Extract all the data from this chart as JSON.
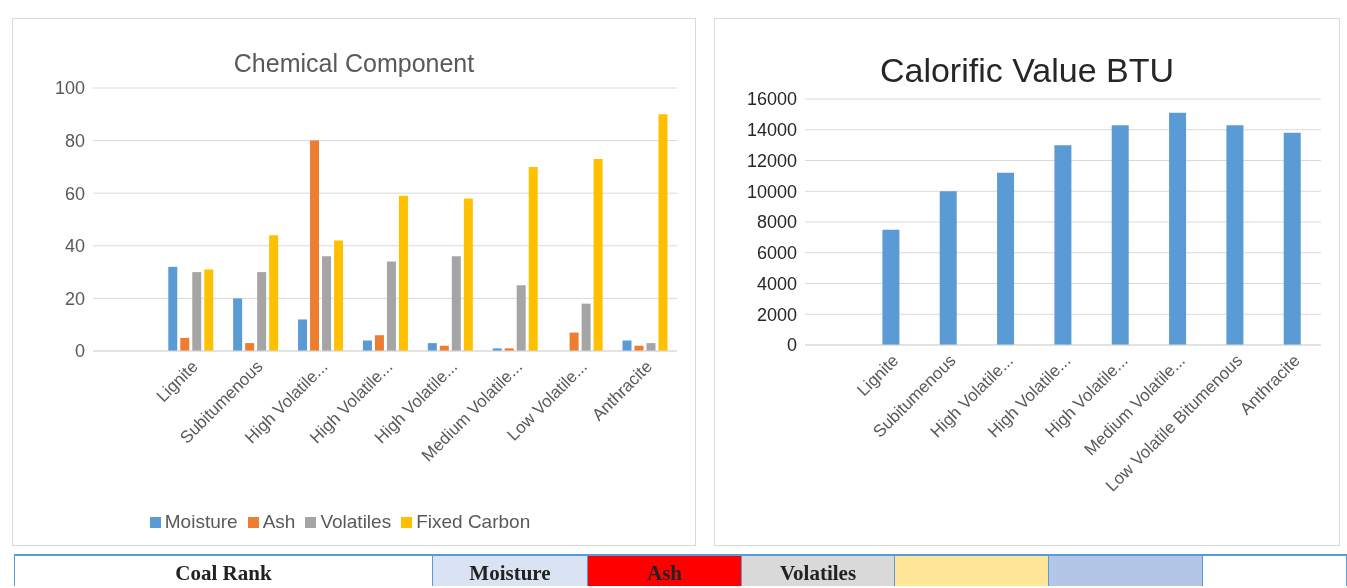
{
  "chart_data": [
    {
      "type": "bar",
      "title": "Chemical Component",
      "categories": [
        null,
        "Lignite",
        "Subitumenous",
        "High Volatile...",
        "High Volatile...",
        "High Volatile...",
        "Medium Volatile...",
        "Low Volatile...",
        "Anthracite"
      ],
      "series": [
        {
          "name": "Moisture",
          "color": "#5b9bd5",
          "values": [
            null,
            32,
            20,
            12,
            4,
            3,
            1,
            null,
            4
          ]
        },
        {
          "name": "Ash",
          "color": "#ed7d31",
          "values": [
            null,
            5,
            3,
            80,
            6,
            2,
            1,
            7,
            2
          ]
        },
        {
          "name": "Volatiles",
          "color": "#a5a5a5",
          "values": [
            null,
            30,
            30,
            36,
            34,
            36,
            25,
            18,
            3
          ]
        },
        {
          "name": "Fixed Carbon",
          "color": "#ffc000",
          "values": [
            null,
            31,
            44,
            42,
            59,
            58,
            70,
            73,
            90
          ]
        }
      ],
      "ylim": [
        0,
        100
      ],
      "yticks": [
        0,
        20,
        40,
        60,
        80,
        100
      ],
      "grid": "y",
      "legend": "bottom"
    },
    {
      "type": "bar",
      "title": "Calorific Value BTU",
      "categories": [
        null,
        "Lignite",
        "Subitumenous",
        "High Volatile...",
        "High Volatile...",
        "High Volatile...",
        "Medium Volatile...",
        "Low Volatile Bitumenous",
        "Anthracite"
      ],
      "values": [
        null,
        7500,
        10000,
        11200,
        13000,
        14300,
        15100,
        14300,
        13800
      ],
      "color": "#5b9bd5",
      "ylim": [
        0,
        16000
      ],
      "yticks": [
        0,
        2000,
        4000,
        6000,
        8000,
        10000,
        12000,
        14000,
        16000
      ],
      "grid": "y"
    },
    {
      "type": "other",
      "categories": [
        "Coal Rank",
        "Moisture",
        "Ash",
        "Volatiles",
        null,
        null,
        null
      ],
      "colors": [
        "#ffffff",
        "#dae3f3",
        "#ff0000",
        "#d9d9d9",
        "#ffe699",
        "#b4c6e7",
        "#ffffff"
      ]
    }
  ]
}
